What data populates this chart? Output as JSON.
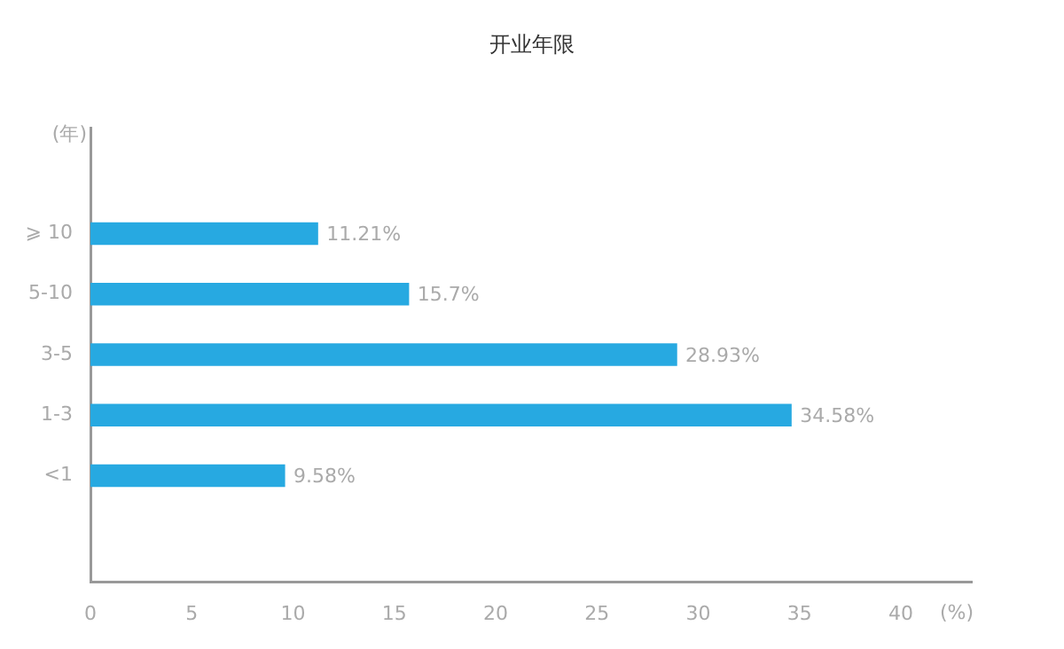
{
  "chart_data": {
    "type": "bar",
    "orientation": "horizontal",
    "title": "开业年限",
    "xlabel": "(%)",
    "ylabel": "(年)",
    "categories": [
      "⩾ 10",
      "5-10",
      "3-5",
      "1-3",
      "<1"
    ],
    "values": [
      11.21,
      15.7,
      28.93,
      34.58,
      9.58
    ],
    "color": "#27a9e1",
    "value_labels": [
      "11.21%",
      "15.7%",
      "28.93%",
      "34.58%",
      "9.58%"
    ],
    "xlim": [
      0,
      43.5
    ],
    "xticks": [
      0,
      5,
      10,
      15,
      20,
      25,
      30,
      35,
      40
    ],
    "grid": false,
    "legend": false
  }
}
